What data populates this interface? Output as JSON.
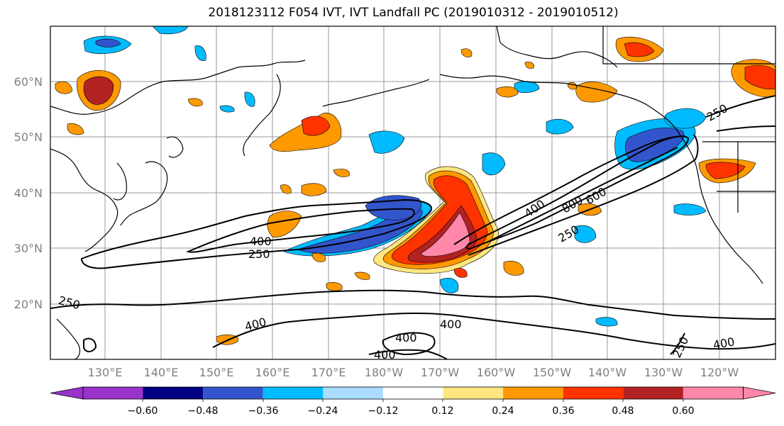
{
  "title": "2018123112 F054 IVT, IVT Landfall PC (2019010312 - 2019010512)",
  "lat_labels": [
    "60°N",
    "50°N",
    "40°N",
    "30°N",
    "20°N"
  ],
  "lon_labels": [
    "130°E",
    "140°E",
    "150°E",
    "160°E",
    "170°E",
    "180°W",
    "170°W",
    "160°W",
    "150°W",
    "140°W",
    "130°W",
    "120°W"
  ],
  "contour_labels": [
    "400",
    "250",
    "400",
    "800",
    "600",
    "250",
    "250",
    "250",
    "400",
    "400",
    "400",
    "400",
    "250",
    "400"
  ],
  "colorbar": {
    "ticks": [
      "−0.60",
      "−0.48",
      "−0.36",
      "−0.24",
      "−0.12",
      "0.12",
      "0.24",
      "0.36",
      "0.48",
      "0.60"
    ],
    "colors": [
      "#9933cc",
      "#000080",
      "#3355cc",
      "#00bbff",
      "#aaddff",
      "#ffffff",
      "#ffe680",
      "#ff9900",
      "#ff3300",
      "#b22222",
      "#ff88aa"
    ]
  },
  "fill_colors": {
    "neg_light": "#aaddff",
    "neg_mid": "#00bbff",
    "neg_strong": "#3355cc",
    "pos_light": "#ffe680",
    "pos_mid": "#ff9900",
    "pos_strong": "#ff3300",
    "pos_darker": "#b22222",
    "pos_max": "#ff88aa"
  }
}
